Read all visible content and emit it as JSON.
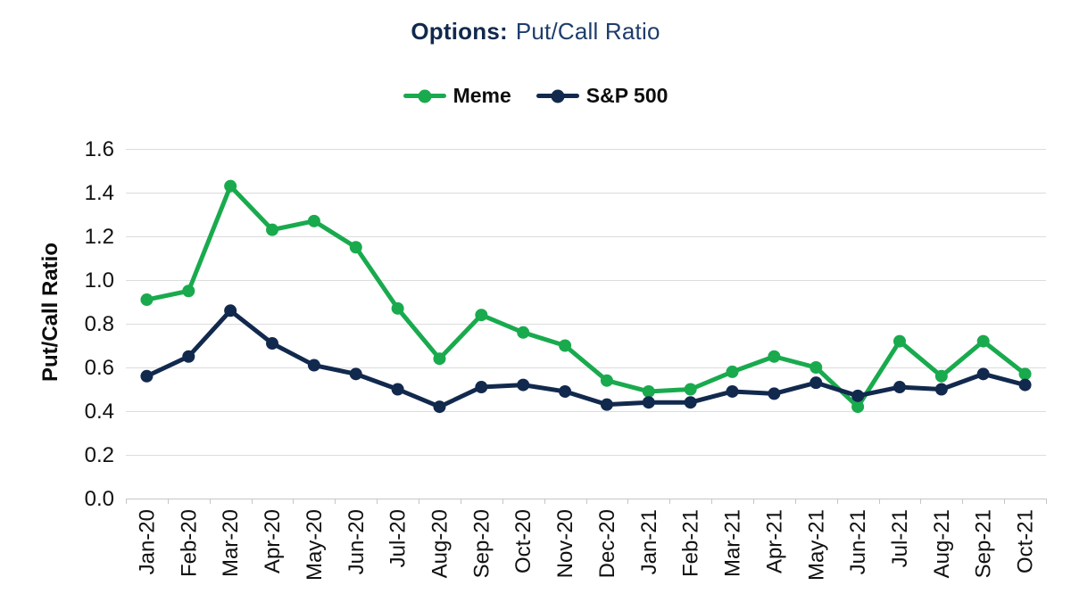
{
  "title": {
    "prefix": "Options:",
    "main": "Put/Call Ratio"
  },
  "legend": {
    "items": [
      {
        "label": "Meme",
        "color": "#19aa4e"
      },
      {
        "label": "S&P 500",
        "color": "#12294e"
      }
    ]
  },
  "y_axis": {
    "title": "Put/Call Ratio"
  },
  "chart_data": {
    "type": "line",
    "title": "Options: Put/Call Ratio",
    "categories": [
      "Jan-20",
      "Feb-20",
      "Mar-20",
      "Apr-20",
      "May-20",
      "Jun-20",
      "Jul-20",
      "Aug-20",
      "Sep-20",
      "Oct-20",
      "Nov-20",
      "Dec-20",
      "Jan-21",
      "Feb-21",
      "Mar-21",
      "Apr-21",
      "May-21",
      "Jun-21",
      "Jul-21",
      "Aug-21",
      "Sep-21",
      "Oct-21"
    ],
    "series": [
      {
        "name": "Meme",
        "color": "#19aa4e",
        "values": [
          0.91,
          0.95,
          1.43,
          1.23,
          1.27,
          1.15,
          0.87,
          0.64,
          0.84,
          0.76,
          0.7,
          0.54,
          0.49,
          0.5,
          0.58,
          0.65,
          0.6,
          0.42,
          0.72,
          0.56,
          0.72,
          0.57
        ]
      },
      {
        "name": "S&P 500",
        "color": "#12294e",
        "values": [
          0.56,
          0.65,
          0.86,
          0.71,
          0.61,
          0.57,
          0.5,
          0.42,
          0.51,
          0.52,
          0.49,
          0.43,
          0.44,
          0.44,
          0.49,
          0.48,
          0.53,
          0.47,
          0.51,
          0.5,
          0.57,
          0.52
        ]
      }
    ],
    "xlabel": "",
    "ylabel": "Put/Call Ratio",
    "ylim": [
      0.0,
      1.6
    ],
    "ytick_labels": [
      "0.0",
      "0.2",
      "0.4",
      "0.6",
      "0.8",
      "1.0",
      "1.2",
      "1.4",
      "1.6"
    ],
    "grid": true,
    "legend_position": "top-center"
  },
  "colors": {
    "grid": "#dcdcdc",
    "axis": "#c6c6c6",
    "tick_text": "#111111",
    "title_prefix": "#12294d",
    "title_main": "#1f3d6b"
  }
}
